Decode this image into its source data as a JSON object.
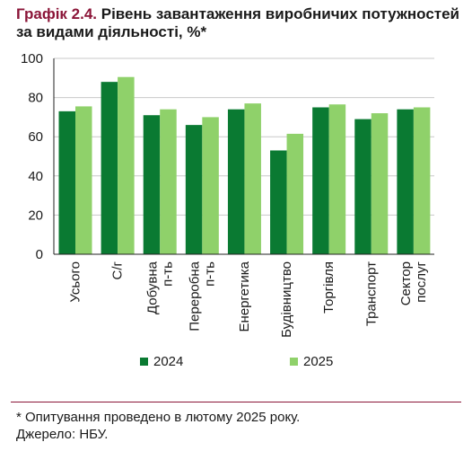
{
  "title": {
    "label": "Графік 2.4.",
    "text": "Рівень завантаження виробничих потужностей за видами діяльності, %*"
  },
  "colors": {
    "series_2024": "#0a7a32",
    "series_2025": "#8fd16a",
    "grid": "#c8c8c8",
    "axis": "#222222"
  },
  "chart_data": {
    "type": "bar",
    "categories": [
      "Усього",
      "С/г",
      "Добувна п-ть",
      "Переробна п-ть",
      "Енергетика",
      "Будівництво",
      "Торгівля",
      "Транспорт",
      "Сектор послуг"
    ],
    "category_lines": [
      [
        "Усього"
      ],
      [
        "С/г"
      ],
      [
        "Добувна",
        "п-ть"
      ],
      [
        "Переробна",
        "п-ть"
      ],
      [
        "Енергетика"
      ],
      [
        "Будівництво"
      ],
      [
        "Торгівля"
      ],
      [
        "Транспорт"
      ],
      [
        "Сектор",
        "послуг"
      ]
    ],
    "series": [
      {
        "name": "2024",
        "values": [
          73,
          88,
          71,
          66,
          74,
          53,
          75,
          69,
          74
        ]
      },
      {
        "name": "2025",
        "values": [
          75.5,
          90.5,
          74,
          70,
          77,
          61.5,
          76.5,
          72,
          75
        ]
      }
    ],
    "ylim": [
      0,
      100
    ],
    "yticks": [
      0,
      20,
      40,
      60,
      80,
      100
    ],
    "grid": true,
    "legend": "bottom"
  },
  "footnote": "* Опитування проведено в лютому 2025 року.",
  "source": "Джерело: НБУ."
}
